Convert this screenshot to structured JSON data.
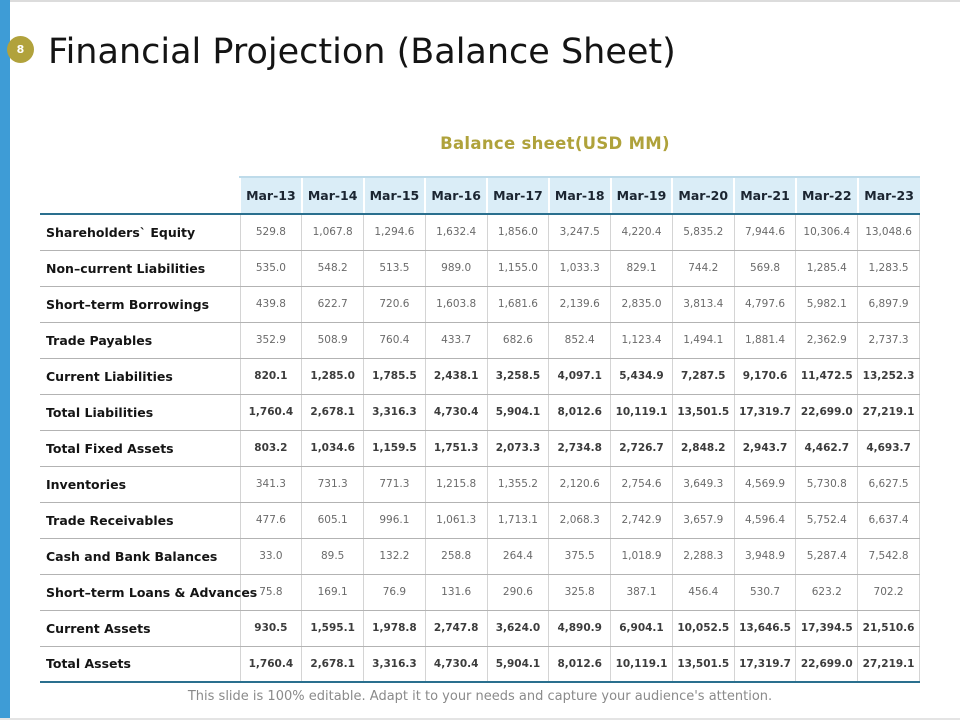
{
  "slide": {
    "page_number": "8",
    "title": "Financial Projection (Balance Sheet)",
    "table_title": "Balance sheet(USD MM)",
    "footer_note": "This slide is 100% editable. Adapt it to your needs and capture your audience's attention."
  },
  "colors": {
    "accent_bar": "#3e9cd6",
    "page_badge": "#b1a23c",
    "table_title": "#afa23b",
    "header_bg": "#daedf7",
    "header_text": "#1b2531",
    "teal_border": "#2a6f8e",
    "value_text": "#6a6a6a",
    "bold_value_text": "#3c3c3c",
    "footer_text": "#8a8a8a"
  },
  "chart_data": {
    "type": "table",
    "title": "Balance sheet(USD MM)",
    "columns": [
      "Mar-13",
      "Mar-14",
      "Mar-15",
      "Mar-16",
      "Mar-17",
      "Mar-18",
      "Mar-19",
      "Mar-20",
      "Mar-21",
      "Mar-22",
      "Mar-23"
    ],
    "rows": [
      {
        "label": "Shareholders` Equity",
        "bold": false,
        "values": [
          "529.8",
          "1,067.8",
          "1,294.6",
          "1,632.4",
          "1,856.0",
          "3,247.5",
          "4,220.4",
          "5,835.2",
          "7,944.6",
          "10,306.4",
          "13,048.6"
        ]
      },
      {
        "label": "Non–current Liabilities",
        "bold": false,
        "values": [
          "535.0",
          "548.2",
          "513.5",
          "989.0",
          "1,155.0",
          "1,033.3",
          "829.1",
          "744.2",
          "569.8",
          "1,285.4",
          "1,283.5"
        ]
      },
      {
        "label": "Short–term Borrowings",
        "bold": false,
        "values": [
          "439.8",
          "622.7",
          "720.6",
          "1,603.8",
          "1,681.6",
          "2,139.6",
          "2,835.0",
          "3,813.4",
          "4,797.6",
          "5,982.1",
          "6,897.9"
        ]
      },
      {
        "label": "Trade Payables",
        "bold": false,
        "values": [
          "352.9",
          "508.9",
          "760.4",
          "433.7",
          "682.6",
          "852.4",
          "1,123.4",
          "1,494.1",
          "1,881.4",
          "2,362.9",
          "2,737.3"
        ]
      },
      {
        "label": "Current Liabilities",
        "bold": true,
        "values": [
          "820.1",
          "1,285.0",
          "1,785.5",
          "2,438.1",
          "3,258.5",
          "4,097.1",
          "5,434.9",
          "7,287.5",
          "9,170.6",
          "11,472.5",
          "13,252.3"
        ]
      },
      {
        "label": "Total Liabilities",
        "bold": true,
        "values": [
          "1,760.4",
          "2,678.1",
          "3,316.3",
          "4,730.4",
          "5,904.1",
          "8,012.6",
          "10,119.1",
          "13,501.5",
          "17,319.7",
          "22,699.0",
          "27,219.1"
        ]
      },
      {
        "label": "Total Fixed Assets",
        "bold": true,
        "values": [
          "803.2",
          "1,034.6",
          "1,159.5",
          "1,751.3",
          "2,073.3",
          "2,734.8",
          "2,726.7",
          "2,848.2",
          "2,943.7",
          "4,462.7",
          "4,693.7"
        ]
      },
      {
        "label": "Inventories",
        "bold": false,
        "values": [
          "341.3",
          "731.3",
          "771.3",
          "1,215.8",
          "1,355.2",
          "2,120.6",
          "2,754.6",
          "3,649.3",
          "4,569.9",
          "5,730.8",
          "6,627.5"
        ]
      },
      {
        "label": "Trade Receivables",
        "bold": false,
        "values": [
          "477.6",
          "605.1",
          "996.1",
          "1,061.3",
          "1,713.1",
          "2,068.3",
          "2,742.9",
          "3,657.9",
          "4,596.4",
          "5,752.4",
          "6,637.4"
        ]
      },
      {
        "label": "Cash and Bank Balances",
        "bold": false,
        "values": [
          "33.0",
          "89.5",
          "132.2",
          "258.8",
          "264.4",
          "375.5",
          "1,018.9",
          "2,288.3",
          "3,948.9",
          "5,287.4",
          "7,542.8"
        ]
      },
      {
        "label": "Short–term Loans & Advances",
        "bold": false,
        "values": [
          "75.8",
          "169.1",
          "76.9",
          "131.6",
          "290.6",
          "325.8",
          "387.1",
          "456.4",
          "530.7",
          "623.2",
          "702.2"
        ]
      },
      {
        "label": "Current Assets",
        "bold": true,
        "values": [
          "930.5",
          "1,595.1",
          "1,978.8",
          "2,747.8",
          "3,624.0",
          "4,890.9",
          "6,904.1",
          "10,052.5",
          "13,646.5",
          "17,394.5",
          "21,510.6"
        ]
      },
      {
        "label": "Total Assets",
        "bold": true,
        "values": [
          "1,760.4",
          "2,678.1",
          "3,316.3",
          "4,730.4",
          "5,904.1",
          "8,012.6",
          "10,119.1",
          "13,501.5",
          "17,319.7",
          "22,699.0",
          "27,219.1"
        ]
      }
    ]
  }
}
